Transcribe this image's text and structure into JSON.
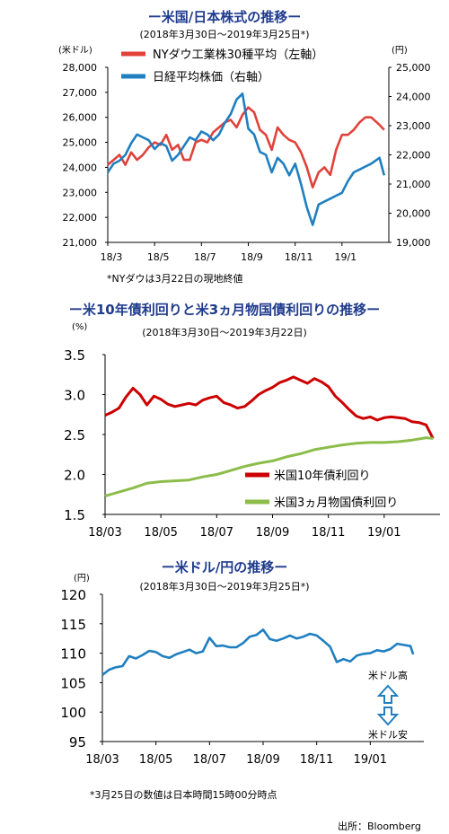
{
  "charts": [
    {
      "title": "ー米国/日本株式の推移ー",
      "subtitle": "(2018年3月30日～2019年3月25日*)",
      "left_unit": "(米ドル)",
      "right_unit": "(円)",
      "note": "*NYダウは3月22日の現地終値",
      "legend": [
        "NYダウ工業株30種平均（左軸）",
        "日経平均株価（右軸）"
      ]
    },
    {
      "title": "ー米10年債利回りと米3ヵ月物国債利回りの推移ー",
      "subtitle": "(2018年3月30日～2019年3月22日)",
      "unit": "(%)",
      "legend": [
        "米国10年債利回り",
        "米国3ヵ月物国債利回り"
      ]
    },
    {
      "title": "ー米ドル/円の推移ー",
      "subtitle": "(2018年3月30日～2019年3月25日*)",
      "unit": "(円)",
      "note": "*3月25日の数値は日本時間15時00分時点",
      "arrow_top": "米ドル高",
      "arrow_bottom": "米ドル安"
    }
  ],
  "source": "出所：Bloomberg",
  "chart_data": [
    {
      "type": "line",
      "title": "ー米国/日本株式の推移ー",
      "x_tick_labels": [
        "18/3",
        "18/5",
        "18/7",
        "18/9",
        "18/11",
        "19/1"
      ],
      "x_ticks_months": [
        0,
        2,
        4,
        6,
        8,
        10
      ],
      "y_left": {
        "ylim": [
          21000,
          28000
        ],
        "ticks": [
          21000,
          22000,
          23000,
          24000,
          25000,
          26000,
          27000,
          28000
        ],
        "tick_labels": [
          "21,000",
          "22,000",
          "23,000",
          "24,000",
          "25,000",
          "26,000",
          "27,000",
          "28,000"
        ]
      },
      "y_right": {
        "ylim": [
          19000,
          25000
        ],
        "ticks": [
          19000,
          20000,
          21000,
          22000,
          23000,
          24000,
          25000
        ],
        "tick_labels": [
          "19,000",
          "20,000",
          "21,000",
          "22,000",
          "23,000",
          "24,000",
          "25,000"
        ]
      },
      "series": [
        {
          "name": "NYダウ工業株30種平均（左軸）",
          "axis": "left",
          "color": "#e0423a",
          "x": [
            0,
            0.25,
            0.5,
            0.75,
            1,
            1.25,
            1.5,
            1.75,
            2,
            2.25,
            2.5,
            2.75,
            3,
            3.25,
            3.5,
            3.75,
            4,
            4.25,
            4.5,
            4.75,
            5,
            5.25,
            5.5,
            5.75,
            6,
            6.25,
            6.5,
            6.75,
            7,
            7.25,
            7.5,
            7.75,
            8,
            8.25,
            8.5,
            8.75,
            9,
            9.25,
            9.5,
            9.75,
            10,
            10.25,
            10.5,
            10.75,
            11,
            11.25,
            11.6,
            11.8
          ],
          "values": [
            24100,
            24300,
            24500,
            24100,
            24600,
            24300,
            24500,
            24800,
            25000,
            24900,
            25300,
            24700,
            24900,
            24300,
            24300,
            25000,
            25100,
            25000,
            25400,
            25600,
            25800,
            25900,
            25600,
            26100,
            26400,
            26200,
            25500,
            25300,
            24700,
            25600,
            25300,
            25100,
            25000,
            24600,
            24000,
            23200,
            23800,
            24000,
            23700,
            24700,
            25300,
            25300,
            25500,
            25800,
            26000,
            26000,
            25700,
            25500
          ]
        },
        {
          "name": "日経平均株価（右軸）",
          "axis": "right",
          "color": "#1f7fc0",
          "x": [
            0,
            0.25,
            0.5,
            0.75,
            1,
            1.25,
            1.5,
            1.75,
            2,
            2.25,
            2.5,
            2.75,
            3,
            3.25,
            3.5,
            3.75,
            4,
            4.25,
            4.5,
            4.75,
            5,
            5.25,
            5.5,
            5.75,
            6,
            6.25,
            6.5,
            6.75,
            7,
            7.25,
            7.5,
            7.75,
            8,
            8.25,
            8.5,
            8.75,
            9,
            9.25,
            9.5,
            9.75,
            10,
            10.25,
            10.5,
            10.75,
            11,
            11.25,
            11.6,
            11.8
          ],
          "values": [
            21400,
            21700,
            21800,
            22000,
            22400,
            22700,
            22600,
            22500,
            22200,
            22400,
            22300,
            21800,
            22000,
            22300,
            22600,
            22500,
            22800,
            22700,
            22500,
            22700,
            23100,
            23400,
            23900,
            24100,
            22900,
            22700,
            22100,
            22000,
            21400,
            21900,
            21700,
            21300,
            21700,
            21000,
            20200,
            19600,
            20300,
            20400,
            20500,
            20600,
            20700,
            21100,
            21400,
            21500,
            21600,
            21700,
            21900,
            21300
          ]
        }
      ]
    },
    {
      "type": "line",
      "title": "ー米10年債利回りと米3ヵ月物国債利回りの推移ー",
      "x_tick_labels": [
        "18/03",
        "18/05",
        "18/07",
        "18/09",
        "18/11",
        "19/01"
      ],
      "x_ticks_months": [
        0,
        2,
        4,
        6,
        8,
        10
      ],
      "ylim": [
        1.5,
        3.5
      ],
      "y_ticks": [
        1.5,
        2.0,
        2.5,
        3.0,
        3.5
      ],
      "y_tick_labels": [
        "1.5",
        "2.0",
        "2.5",
        "3.0",
        "3.5"
      ],
      "series": [
        {
          "name": "米国10年債利回り",
          "color": "#cc0000",
          "x": [
            0,
            0.25,
            0.5,
            0.75,
            1,
            1.25,
            1.5,
            1.75,
            2,
            2.25,
            2.5,
            2.75,
            3,
            3.25,
            3.5,
            3.75,
            4,
            4.25,
            4.5,
            4.75,
            5,
            5.25,
            5.5,
            5.75,
            6,
            6.25,
            6.5,
            6.75,
            7,
            7.25,
            7.5,
            7.75,
            8,
            8.25,
            8.5,
            8.75,
            9,
            9.25,
            9.5,
            9.75,
            10,
            10.25,
            10.5,
            10.75,
            11,
            11.25,
            11.5,
            11.75
          ],
          "values": [
            2.74,
            2.78,
            2.83,
            2.97,
            3.08,
            3.0,
            2.87,
            2.98,
            2.94,
            2.88,
            2.85,
            2.87,
            2.89,
            2.87,
            2.93,
            2.96,
            2.98,
            2.9,
            2.87,
            2.83,
            2.85,
            2.92,
            3.0,
            3.05,
            3.09,
            3.15,
            3.18,
            3.22,
            3.18,
            3.14,
            3.2,
            3.16,
            3.1,
            2.98,
            2.9,
            2.81,
            2.73,
            2.7,
            2.72,
            2.68,
            2.71,
            2.72,
            2.71,
            2.7,
            2.66,
            2.65,
            2.62,
            2.45
          ]
        },
        {
          "name": "米国3ヵ月物国債利回り",
          "color": "#8cbd4a",
          "x": [
            0,
            0.5,
            1,
            1.5,
            2,
            2.5,
            3,
            3.5,
            4,
            4.5,
            5,
            5.5,
            6,
            6.5,
            7,
            7.5,
            8,
            8.5,
            9,
            9.5,
            10,
            10.5,
            11,
            11.5,
            11.75
          ],
          "values": [
            1.73,
            1.78,
            1.83,
            1.89,
            1.91,
            1.92,
            1.93,
            1.97,
            2.0,
            2.05,
            2.1,
            2.14,
            2.17,
            2.22,
            2.26,
            2.31,
            2.34,
            2.37,
            2.39,
            2.4,
            2.4,
            2.41,
            2.43,
            2.46,
            2.45
          ]
        }
      ]
    },
    {
      "type": "line",
      "title": "ー米ドル/円の推移ー",
      "x_tick_labels": [
        "18/03",
        "18/05",
        "18/07",
        "18/09",
        "18/11",
        "19/01"
      ],
      "x_ticks_months": [
        0,
        2,
        4,
        6,
        8,
        10
      ],
      "ylim": [
        95,
        120
      ],
      "y_ticks": [
        95,
        100,
        105,
        110,
        115,
        120
      ],
      "y_tick_labels": [
        "95",
        "100",
        "105",
        "110",
        "115",
        "120"
      ],
      "series": [
        {
          "name": "米ドル/円",
          "color": "#1f7fc0",
          "x": [
            0,
            0.25,
            0.5,
            0.75,
            1,
            1.25,
            1.5,
            1.75,
            2,
            2.25,
            2.5,
            2.75,
            3,
            3.25,
            3.5,
            3.75,
            4,
            4.25,
            4.5,
            4.75,
            5,
            5.25,
            5.5,
            5.75,
            6,
            6.25,
            6.5,
            6.75,
            7,
            7.25,
            7.5,
            7.75,
            8,
            8.25,
            8.5,
            8.75,
            9,
            9.25,
            9.5,
            9.75,
            10,
            10.25,
            10.5,
            10.75,
            11,
            11.25,
            11.5,
            11.6
          ],
          "values": [
            106.3,
            107.2,
            107.6,
            107.8,
            109.5,
            109.1,
            109.7,
            110.4,
            110.2,
            109.5,
            109.2,
            109.8,
            110.2,
            110.6,
            110.0,
            110.3,
            112.6,
            111.2,
            111.3,
            111.0,
            111.0,
            111.7,
            112.8,
            113.1,
            114.0,
            112.4,
            112.1,
            112.5,
            113.0,
            112.5,
            112.8,
            113.3,
            113.0,
            112.1,
            111.1,
            108.5,
            109.0,
            108.6,
            109.6,
            109.9,
            110.0,
            110.5,
            110.3,
            110.7,
            111.6,
            111.4,
            111.2,
            109.8
          ]
        }
      ]
    }
  ]
}
